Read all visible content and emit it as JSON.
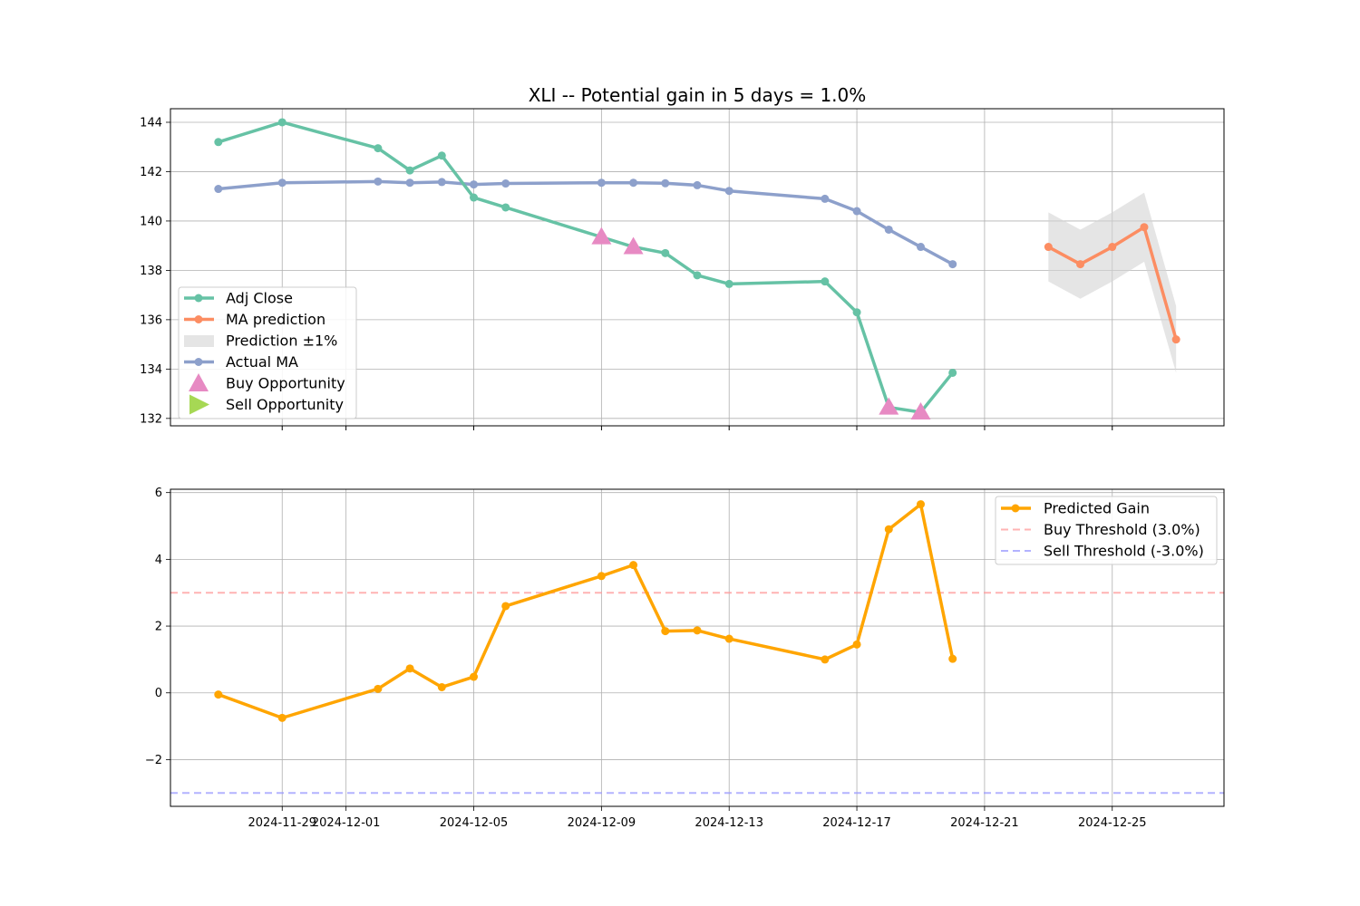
{
  "chart_data": [
    {
      "type": "line",
      "title": "XLI -- Potential gain in 5 days = 1.0%",
      "xlabel": "",
      "ylabel": "",
      "ylim": [
        131.7,
        144.55
      ],
      "yticks": [
        132,
        134,
        136,
        138,
        140,
        142,
        144
      ],
      "grid": true,
      "legend_position": "lower-left",
      "series": [
        {
          "name": "Adj Close",
          "color": "#66c2a5",
          "marker": "circle",
          "x": [
            "2024-11-27",
            "2024-11-29",
            "2024-12-02",
            "2024-12-03",
            "2024-12-04",
            "2024-12-05",
            "2024-12-06",
            "2024-12-09",
            "2024-12-10",
            "2024-12-11",
            "2024-12-12",
            "2024-12-13",
            "2024-12-16",
            "2024-12-17",
            "2024-12-18",
            "2024-12-19",
            "2024-12-20"
          ],
          "values": [
            143.2,
            144.0,
            142.95,
            142.05,
            142.65,
            140.95,
            140.55,
            139.35,
            138.95,
            138.7,
            137.8,
            137.45,
            137.55,
            136.3,
            132.45,
            132.25,
            133.85
          ]
        },
        {
          "name": "MA prediction",
          "color": "#fc8d62",
          "marker": "circle",
          "x": [
            "2024-12-23",
            "2024-12-24",
            "2024-12-25",
            "2024-12-26",
            "2024-12-27"
          ],
          "values": [
            138.95,
            138.25,
            138.95,
            139.75,
            135.2
          ]
        },
        {
          "name": "Prediction ±1%",
          "color": "#d3d3d3",
          "type": "band",
          "x": [
            "2024-12-23",
            "2024-12-24",
            "2024-12-25",
            "2024-12-26",
            "2024-12-27"
          ],
          "lower": [
            137.55,
            136.85,
            137.55,
            138.35,
            133.85
          ],
          "upper": [
            140.35,
            139.65,
            140.35,
            141.15,
            136.55
          ]
        },
        {
          "name": "Actual MA",
          "color": "#8da0cb",
          "marker": "circle",
          "x": [
            "2024-11-27",
            "2024-11-29",
            "2024-12-02",
            "2024-12-03",
            "2024-12-04",
            "2024-12-05",
            "2024-12-06",
            "2024-12-09",
            "2024-12-10",
            "2024-12-11",
            "2024-12-12",
            "2024-12-13",
            "2024-12-16",
            "2024-12-17",
            "2024-12-18",
            "2024-12-19",
            "2024-12-20"
          ],
          "values": [
            141.3,
            141.55,
            141.6,
            141.55,
            141.58,
            141.48,
            141.52,
            141.55,
            141.55,
            141.53,
            141.45,
            141.22,
            140.9,
            140.4,
            139.65,
            138.95,
            138.25
          ]
        },
        {
          "name": "Buy Opportunity",
          "color": "#e78ac3",
          "marker": "triangle-up",
          "type": "scatter",
          "x": [
            "2024-12-09",
            "2024-12-10",
            "2024-12-18",
            "2024-12-19"
          ],
          "values": [
            139.35,
            138.95,
            132.45,
            132.25
          ]
        },
        {
          "name": "Sell Opportunity",
          "color": "#a6d854",
          "marker": "triangle-right",
          "type": "scatter",
          "x": [],
          "values": []
        }
      ]
    },
    {
      "type": "line",
      "title": "",
      "xlabel": "",
      "ylabel": "",
      "ylim": [
        -3.4,
        6.1
      ],
      "yticks": [
        -2,
        0,
        2,
        4,
        6
      ],
      "xticks": [
        "2024-11-29",
        "2024-12-01",
        "2024-12-05",
        "2024-12-09",
        "2024-12-13",
        "2024-12-17",
        "2024-12-21",
        "2024-12-25"
      ],
      "xlim": [
        "2024-11-25 12:00",
        "2024-12-28 12:00"
      ],
      "grid": true,
      "legend_position": "upper-right",
      "series": [
        {
          "name": "Predicted Gain",
          "color": "#ffa500",
          "marker": "circle",
          "x": [
            "2024-11-27",
            "2024-11-29",
            "2024-12-02",
            "2024-12-03",
            "2024-12-04",
            "2024-12-05",
            "2024-12-06",
            "2024-12-09",
            "2024-12-10",
            "2024-12-11",
            "2024-12-12",
            "2024-12-13",
            "2024-12-16",
            "2024-12-17",
            "2024-12-18",
            "2024-12-19",
            "2024-12-20"
          ],
          "values": [
            -0.05,
            -0.75,
            0.12,
            0.73,
            0.17,
            0.48,
            2.6,
            3.5,
            3.83,
            1.85,
            1.87,
            1.62,
            1.0,
            1.45,
            4.9,
            5.65,
            1.02
          ]
        }
      ],
      "hlines": [
        {
          "name": "Buy Threshold (3.0%)",
          "y": 3.0,
          "color": "#ff9999",
          "style": "dashed"
        },
        {
          "name": "Sell Threshold (-3.0%)",
          "y": -3.0,
          "color": "#9999ff",
          "style": "dashed"
        }
      ]
    }
  ]
}
